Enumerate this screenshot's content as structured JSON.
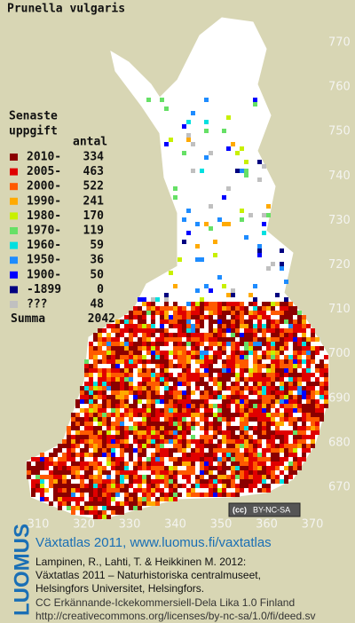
{
  "title": "Prunella vulgaris",
  "legend": {
    "heading": [
      "Senaste",
      "uppgift"
    ],
    "count_header": "antal",
    "rows": [
      {
        "label": "2010-",
        "count": 334,
        "color": "#8b0000"
      },
      {
        "label": "2005-",
        "count": 463,
        "color": "#e00000"
      },
      {
        "label": "2000-",
        "count": 522,
        "color": "#ff5a00"
      },
      {
        "label": "1990-",
        "count": 241,
        "color": "#ffaa00"
      },
      {
        "label": "1980-",
        "count": 170,
        "color": "#c8f000"
      },
      {
        "label": "1970-",
        "count": 119,
        "color": "#66e066"
      },
      {
        "label": "1960-",
        "count": 59,
        "color": "#00e0e0"
      },
      {
        "label": "1950-",
        "count": 36,
        "color": "#1e8cff"
      },
      {
        "label": "1900-",
        "count": 50,
        "color": "#0000ff"
      },
      {
        "label": "-1899",
        "count": 0,
        "color": "#000080"
      },
      {
        "label": "???",
        "count": 48,
        "color": "#c0c0c0"
      }
    ],
    "total_label": "Summa",
    "total": 2042
  },
  "grid_labels": {
    "north": [
      770,
      760,
      750,
      740,
      730,
      720,
      710,
      700,
      690,
      680,
      670
    ],
    "east": [
      310,
      320,
      330,
      340,
      350,
      360,
      370
    ]
  },
  "license_badge": [
    "(cc)",
    "BY-NC-SA"
  ],
  "logo": "LUOMUS",
  "credits": {
    "heading": "Växtatlas 2011, www.luomus.fi/vaxtatlas",
    "citation": [
      "Lampinen, R., Lahti, T. & Heikkinen M. 2012:",
      "Växtatlas 2011 – Naturhistoriska centralmuseet,",
      "Helsingfors Universitet, Helsingfors."
    ],
    "license": [
      "CC Erkännande-Ickekommersiell-Dela Lika 1.0 Finland",
      "http://creativecommons.org/licenses/by-nc-sa/1.0/fi/deed.sv"
    ]
  }
}
